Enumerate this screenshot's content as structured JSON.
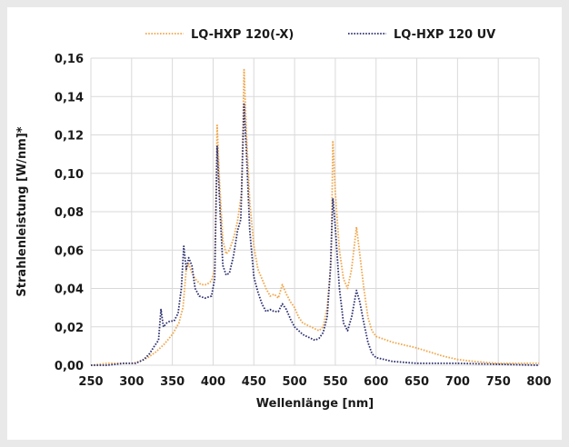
{
  "chart_data": {
    "type": "line",
    "xlabel": "Wellenlänge [nm]",
    "ylabel": "Strahlenleistung [W/nm]*",
    "xlim": [
      250,
      800
    ],
    "ylim": [
      0,
      0.16
    ],
    "x_ticks": [
      250,
      300,
      350,
      400,
      450,
      500,
      550,
      600,
      650,
      700,
      750,
      800
    ],
    "y_ticks": [
      0,
      0.02,
      0.04,
      0.06,
      0.08,
      0.1,
      0.12,
      0.14,
      0.16
    ],
    "y_tick_labels": [
      "0,00",
      "0,02",
      "0,04",
      "0,06",
      "0,08",
      "0,10",
      "0,12",
      "0,14",
      "0,16"
    ],
    "grid": true,
    "legend_position": "top",
    "series": [
      {
        "name": "LQ-HXP 120(-X)",
        "color": "#f0a64a",
        "style": "dotted",
        "points": [
          [
            250,
            0.0
          ],
          [
            270,
            0.001
          ],
          [
            290,
            0.001
          ],
          [
            300,
            0.001
          ],
          [
            310,
            0.002
          ],
          [
            320,
            0.004
          ],
          [
            330,
            0.007
          ],
          [
            340,
            0.011
          ],
          [
            350,
            0.016
          ],
          [
            358,
            0.022
          ],
          [
            363,
            0.03
          ],
          [
            367,
            0.05
          ],
          [
            370,
            0.053
          ],
          [
            373,
            0.049
          ],
          [
            378,
            0.045
          ],
          [
            385,
            0.042
          ],
          [
            392,
            0.042
          ],
          [
            398,
            0.044
          ],
          [
            402,
            0.05
          ],
          [
            405,
            0.125
          ],
          [
            408,
            0.095
          ],
          [
            412,
            0.065
          ],
          [
            416,
            0.058
          ],
          [
            420,
            0.06
          ],
          [
            425,
            0.066
          ],
          [
            430,
            0.075
          ],
          [
            435,
            0.09
          ],
          [
            438,
            0.154
          ],
          [
            441,
            0.12
          ],
          [
            445,
            0.085
          ],
          [
            450,
            0.062
          ],
          [
            455,
            0.05
          ],
          [
            460,
            0.045
          ],
          [
            465,
            0.04
          ],
          [
            470,
            0.036
          ],
          [
            475,
            0.037
          ],
          [
            480,
            0.035
          ],
          [
            485,
            0.042
          ],
          [
            490,
            0.037
          ],
          [
            495,
            0.033
          ],
          [
            500,
            0.03
          ],
          [
            505,
            0.025
          ],
          [
            510,
            0.022
          ],
          [
            515,
            0.021
          ],
          [
            520,
            0.02
          ],
          [
            525,
            0.019
          ],
          [
            530,
            0.018
          ],
          [
            535,
            0.02
          ],
          [
            540,
            0.03
          ],
          [
            545,
            0.055
          ],
          [
            547,
            0.117
          ],
          [
            550,
            0.09
          ],
          [
            555,
            0.06
          ],
          [
            560,
            0.045
          ],
          [
            565,
            0.04
          ],
          [
            570,
            0.05
          ],
          [
            576,
            0.072
          ],
          [
            580,
            0.058
          ],
          [
            585,
            0.04
          ],
          [
            590,
            0.025
          ],
          [
            595,
            0.018
          ],
          [
            600,
            0.015
          ],
          [
            620,
            0.012
          ],
          [
            650,
            0.009
          ],
          [
            680,
            0.005
          ],
          [
            700,
            0.003
          ],
          [
            720,
            0.002
          ],
          [
            750,
            0.001
          ],
          [
            800,
            0.001
          ]
        ]
      },
      {
        "name": "LQ-HXP 120 UV",
        "color": "#2b2f6e",
        "style": "dotted",
        "points": [
          [
            250,
            0.0
          ],
          [
            270,
            0.0
          ],
          [
            290,
            0.001
          ],
          [
            305,
            0.001
          ],
          [
            315,
            0.003
          ],
          [
            322,
            0.006
          ],
          [
            328,
            0.01
          ],
          [
            333,
            0.013
          ],
          [
            336,
            0.029
          ],
          [
            339,
            0.02
          ],
          [
            343,
            0.022
          ],
          [
            347,
            0.023
          ],
          [
            352,
            0.023
          ],
          [
            357,
            0.027
          ],
          [
            361,
            0.04
          ],
          [
            364,
            0.062
          ],
          [
            367,
            0.05
          ],
          [
            370,
            0.056
          ],
          [
            374,
            0.052
          ],
          [
            378,
            0.04
          ],
          [
            383,
            0.036
          ],
          [
            390,
            0.035
          ],
          [
            398,
            0.036
          ],
          [
            402,
            0.045
          ],
          [
            405,
            0.114
          ],
          [
            408,
            0.085
          ],
          [
            412,
            0.052
          ],
          [
            416,
            0.047
          ],
          [
            420,
            0.048
          ],
          [
            425,
            0.057
          ],
          [
            430,
            0.07
          ],
          [
            434,
            0.076
          ],
          [
            438,
            0.136
          ],
          [
            441,
            0.11
          ],
          [
            445,
            0.07
          ],
          [
            450,
            0.046
          ],
          [
            455,
            0.038
          ],
          [
            460,
            0.032
          ],
          [
            465,
            0.028
          ],
          [
            470,
            0.029
          ],
          [
            475,
            0.028
          ],
          [
            480,
            0.028
          ],
          [
            485,
            0.032
          ],
          [
            490,
            0.029
          ],
          [
            495,
            0.024
          ],
          [
            500,
            0.02
          ],
          [
            505,
            0.018
          ],
          [
            510,
            0.016
          ],
          [
            515,
            0.015
          ],
          [
            520,
            0.014
          ],
          [
            525,
            0.013
          ],
          [
            530,
            0.014
          ],
          [
            535,
            0.017
          ],
          [
            540,
            0.025
          ],
          [
            544,
            0.05
          ],
          [
            547,
            0.087
          ],
          [
            550,
            0.072
          ],
          [
            555,
            0.04
          ],
          [
            560,
            0.022
          ],
          [
            565,
            0.018
          ],
          [
            570,
            0.025
          ],
          [
            576,
            0.039
          ],
          [
            580,
            0.033
          ],
          [
            585,
            0.022
          ],
          [
            590,
            0.012
          ],
          [
            595,
            0.006
          ],
          [
            600,
            0.004
          ],
          [
            620,
            0.002
          ],
          [
            650,
            0.001
          ],
          [
            700,
            0.001
          ],
          [
            800,
            0.0
          ]
        ]
      }
    ]
  }
}
